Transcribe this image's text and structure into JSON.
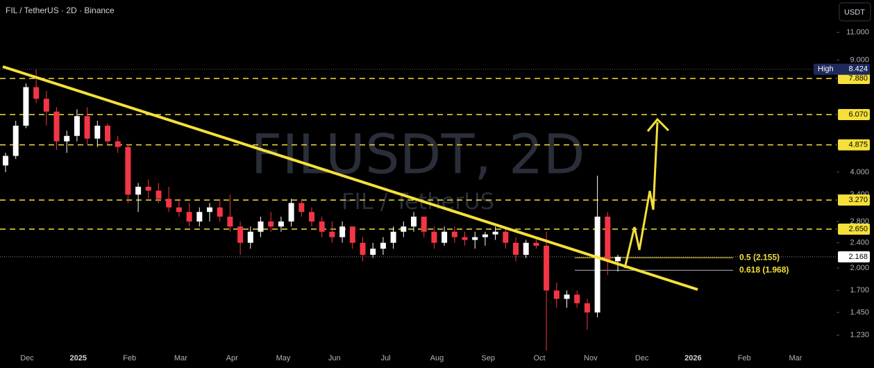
{
  "chart_data": {
    "type": "candlestick",
    "title": "FIL / TetherUS · 2D · Binance",
    "watermark": "FILUSDT, 2D",
    "watermark_subtitle": "FIL / TetherUS",
    "currency_button": "USDT",
    "log_scale": true,
    "up_color": "#ffffff",
    "down_color": "#f23645",
    "level_color": "#f5e03a",
    "categories": [
      "Dec",
      "2025",
      "Feb",
      "Mar",
      "Apr",
      "May",
      "Jun",
      "Jul",
      "Aug",
      "Sep",
      "Oct",
      "Nov",
      "Dec",
      "2026",
      "Feb",
      "Mar"
    ],
    "ylim": [
      1.1,
      13.9
    ],
    "yticks": [
      {
        "value": 1.23,
        "label": "1.230"
      },
      {
        "value": 1.45,
        "label": "1.450"
      },
      {
        "value": 1.7,
        "label": "1.700"
      },
      {
        "value": 2,
        "label": "2.000"
      },
      {
        "value": 2.4,
        "label": "2.400"
      },
      {
        "value": 2.8,
        "label": "2.800"
      },
      {
        "value": 3.4,
        "label": "3.400"
      },
      {
        "value": 4,
        "label": "4.000"
      },
      {
        "value": 9,
        "label": "9.000"
      },
      {
        "value": 11,
        "label": "11.000"
      }
    ],
    "open": [
      4.2,
      4.5,
      5.6,
      7.4,
      6.8,
      6.2,
      5.0,
      5.2,
      6.0,
      5.1,
      5.6,
      5.0,
      4.8,
      3.4,
      3.6,
      3.5,
      3.3,
      3.1,
      3.0,
      2.8,
      3.0,
      3.1,
      2.9,
      2.7,
      2.4,
      2.6,
      2.8,
      2.7,
      2.8,
      3.2,
      3.0,
      2.8,
      2.6,
      2.5,
      2.7,
      2.4,
      2.2,
      2.3,
      2.4,
      2.6,
      2.7,
      2.9,
      2.6,
      2.4,
      2.6,
      2.5,
      2.45,
      2.5,
      2.55,
      2.6,
      2.4,
      2.2,
      2.4,
      2.35,
      1.7,
      1.6,
      1.65,
      1.55,
      1.45,
      2.9,
      2.1
    ],
    "high": [
      4.6,
      5.8,
      7.6,
      8.42,
      7.2,
      6.4,
      5.4,
      6.3,
      6.4,
      5.8,
      5.7,
      5.2,
      4.9,
      3.7,
      3.8,
      3.7,
      3.6,
      3.3,
      3.2,
      3.1,
      3.2,
      3.3,
      3.4,
      2.8,
      2.7,
      2.9,
      3.0,
      2.9,
      3.3,
      3.3,
      3.1,
      2.9,
      2.8,
      2.8,
      2.7,
      2.5,
      2.4,
      2.5,
      2.7,
      2.8,
      3.0,
      2.9,
      2.7,
      2.7,
      2.7,
      2.6,
      2.6,
      2.6,
      2.7,
      2.65,
      2.5,
      2.45,
      2.5,
      2.6,
      1.8,
      1.7,
      1.7,
      1.6,
      3.9,
      3.0,
      2.2
    ],
    "low": [
      4.0,
      4.4,
      5.5,
      6.6,
      5.6,
      4.7,
      4.6,
      5.0,
      4.9,
      4.8,
      4.9,
      4.6,
      3.2,
      3.0,
      3.3,
      3.2,
      3.0,
      2.9,
      2.7,
      2.7,
      2.8,
      2.8,
      2.6,
      2.2,
      2.3,
      2.5,
      2.6,
      2.6,
      2.7,
      2.9,
      2.7,
      2.5,
      2.4,
      2.4,
      2.3,
      2.1,
      2.15,
      2.2,
      2.3,
      2.5,
      2.6,
      2.5,
      2.3,
      2.35,
      2.4,
      2.35,
      2.3,
      2.35,
      2.45,
      2.3,
      2.1,
      2.15,
      2.3,
      1.1,
      1.5,
      1.5,
      1.5,
      1.28,
      1.4,
      1.9,
      1.95
    ],
    "close": [
      4.5,
      5.6,
      7.4,
      6.8,
      6.2,
      5.0,
      5.2,
      6.0,
      5.1,
      5.6,
      5.0,
      4.8,
      3.4,
      3.6,
      3.5,
      3.3,
      3.1,
      3.0,
      2.8,
      3.0,
      3.1,
      2.9,
      2.7,
      2.4,
      2.6,
      2.8,
      2.7,
      2.8,
      3.2,
      3.0,
      2.8,
      2.6,
      2.5,
      2.7,
      2.4,
      2.2,
      2.3,
      2.4,
      2.6,
      2.7,
      2.9,
      2.6,
      2.4,
      2.6,
      2.5,
      2.45,
      2.5,
      2.55,
      2.6,
      2.4,
      2.2,
      2.4,
      2.35,
      1.7,
      1.6,
      1.65,
      1.55,
      1.45,
      2.9,
      2.1,
      2.168
    ],
    "levels": [
      {
        "value": 7.88,
        "label": "7.880"
      },
      {
        "value": 6.07,
        "label": "6.070"
      },
      {
        "value": 4.875,
        "label": "4.875"
      },
      {
        "value": 3.27,
        "label": "3.270"
      },
      {
        "value": 2.65,
        "label": "2.650"
      }
    ],
    "high_marker": {
      "tag": "High",
      "value": 8.424,
      "label": "8.424"
    },
    "last_price": {
      "value": 2.168,
      "label": "2.168"
    },
    "fib_levels": [
      {
        "value": 2.155,
        "label": "0.5 (2.155)"
      },
      {
        "value": 1.968,
        "label": "0.618 (1.968)"
      }
    ]
  }
}
